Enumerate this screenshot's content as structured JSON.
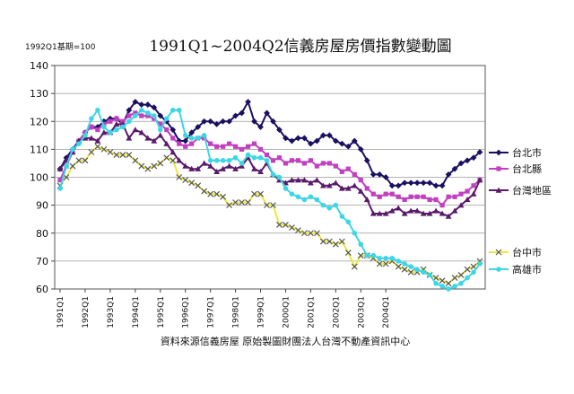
{
  "colors": {
    "taipei_city": "#1a1060",
    "taipei_county": "#c040c0",
    "taiwan": "#5a1a6a",
    "taichung": "#ece83a",
    "kaohsiung": "#3ed6e4",
    "plot_bg": "#ffffff",
    "grid": "#9a9a9a",
    "axis": "#444444"
  },
  "chart_data": {
    "type": "line",
    "title": "1991Q1~2004Q2信義房屋房價指數變動圖",
    "base_note": "1992Q1基期=100",
    "source": "資料來源信義房屋 原始製圖財團法人台灣不動產資訊中心",
    "xlabel": "",
    "ylabel": "",
    "ylim": [
      60,
      140
    ],
    "yticks": [
      60,
      70,
      80,
      90,
      100,
      110,
      120,
      130,
      140
    ],
    "grid": "horizontal",
    "legend_position": "right",
    "x_tick_labels": [
      "1991Q1",
      "1992Q1",
      "1993Q1",
      "1994Q1",
      "1995Q1",
      "1996Q1",
      "1997Q1",
      "1998Q1",
      "1999Q1",
      "2000Q1",
      "2001Q1",
      "2002Q1",
      "2003Q1",
      "2004Q1"
    ],
    "x_tick_index": [
      0,
      4,
      8,
      12,
      16,
      20,
      24,
      28,
      32,
      36,
      40,
      44,
      48,
      52
    ],
    "series": [
      {
        "name": "台北市",
        "key": "taipei_city",
        "marker": "diamond",
        "values": [
          103,
          107,
          110,
          113,
          116,
          118,
          118,
          120,
          121,
          121,
          119,
          124,
          127,
          126,
          126,
          125,
          122,
          120,
          117,
          113,
          113,
          116,
          118,
          120,
          120,
          119,
          120,
          120,
          122,
          123,
          127,
          120,
          118,
          123,
          120,
          117,
          114,
          113,
          114,
          114,
          112,
          113,
          115,
          115,
          113,
          112,
          111,
          113,
          110,
          106,
          101,
          101,
          100,
          97,
          97,
          98,
          98,
          98,
          98,
          98,
          97,
          97,
          101,
          103,
          105,
          106,
          107,
          109
        ]
      },
      {
        "name": "台北縣",
        "key": "taipei_county",
        "marker": "square",
        "values": [
          99,
          104,
          109,
          113,
          116,
          118,
          117,
          119,
          120,
          121,
          120,
          122,
          123,
          122,
          122,
          121,
          119,
          117,
          114,
          112,
          111,
          112,
          114,
          114,
          112,
          111,
          111,
          112,
          111,
          110,
          111,
          112,
          110,
          108,
          106,
          107,
          105,
          106,
          106,
          105,
          106,
          104,
          105,
          105,
          104,
          102,
          103,
          101,
          99,
          96,
          94,
          93,
          94,
          94,
          93,
          92,
          93,
          93,
          93,
          92,
          92,
          90,
          93,
          93,
          94,
          95,
          97,
          99
        ]
      },
      {
        "name": "台灣地區",
        "key": "taiwan",
        "marker": "triangle",
        "values": [
          103,
          106,
          109,
          113,
          114,
          114,
          113,
          116,
          116,
          119,
          119,
          114,
          117,
          116,
          114,
          113,
          115,
          112,
          109,
          106,
          104,
          103,
          103,
          105,
          104,
          102,
          103,
          104,
          103,
          104,
          107,
          103,
          102,
          105,
          101,
          99,
          98,
          99,
          99,
          99,
          98,
          99,
          97,
          97,
          98,
          96,
          96,
          97,
          95,
          92,
          87,
          87,
          87,
          88,
          89,
          87,
          88,
          88,
          87,
          87,
          88,
          87,
          86,
          88,
          90,
          92,
          94,
          99
        ]
      },
      {
        "name": "台中市",
        "key": "taichung",
        "marker": "x",
        "values": [
          97,
          100,
          104,
          106,
          106,
          109,
          111,
          110,
          109,
          108,
          108,
          108,
          106,
          104,
          103,
          104,
          105,
          107,
          106,
          100,
          99,
          98,
          97,
          95,
          94,
          94,
          93,
          90,
          91,
          91,
          91,
          94,
          94,
          90,
          90,
          83,
          83,
          82,
          81,
          80,
          80,
          80,
          77,
          77,
          76,
          77,
          73,
          68,
          72,
          72,
          71,
          69,
          69,
          70,
          68,
          67,
          66,
          66,
          67,
          65,
          64,
          63,
          62,
          64,
          65,
          67,
          68,
          70
        ]
      },
      {
        "name": "高雄市",
        "key": "kaohsiung",
        "marker": "circle",
        "values": [
          96,
          104,
          110,
          112,
          115,
          121,
          124,
          118,
          116,
          117,
          118,
          120,
          122,
          124,
          123,
          122,
          117,
          121,
          124,
          124,
          115,
          114,
          114,
          115,
          106,
          106,
          106,
          106,
          107,
          105,
          108,
          107,
          107,
          106,
          101,
          100,
          96,
          94,
          93,
          92,
          93,
          92,
          90,
          89,
          90,
          86,
          84,
          80,
          76,
          72,
          72,
          71,
          71,
          71,
          70,
          69,
          68,
          67,
          66,
          65,
          62,
          61,
          60,
          61,
          62,
          64,
          66,
          69
        ]
      }
    ]
  }
}
